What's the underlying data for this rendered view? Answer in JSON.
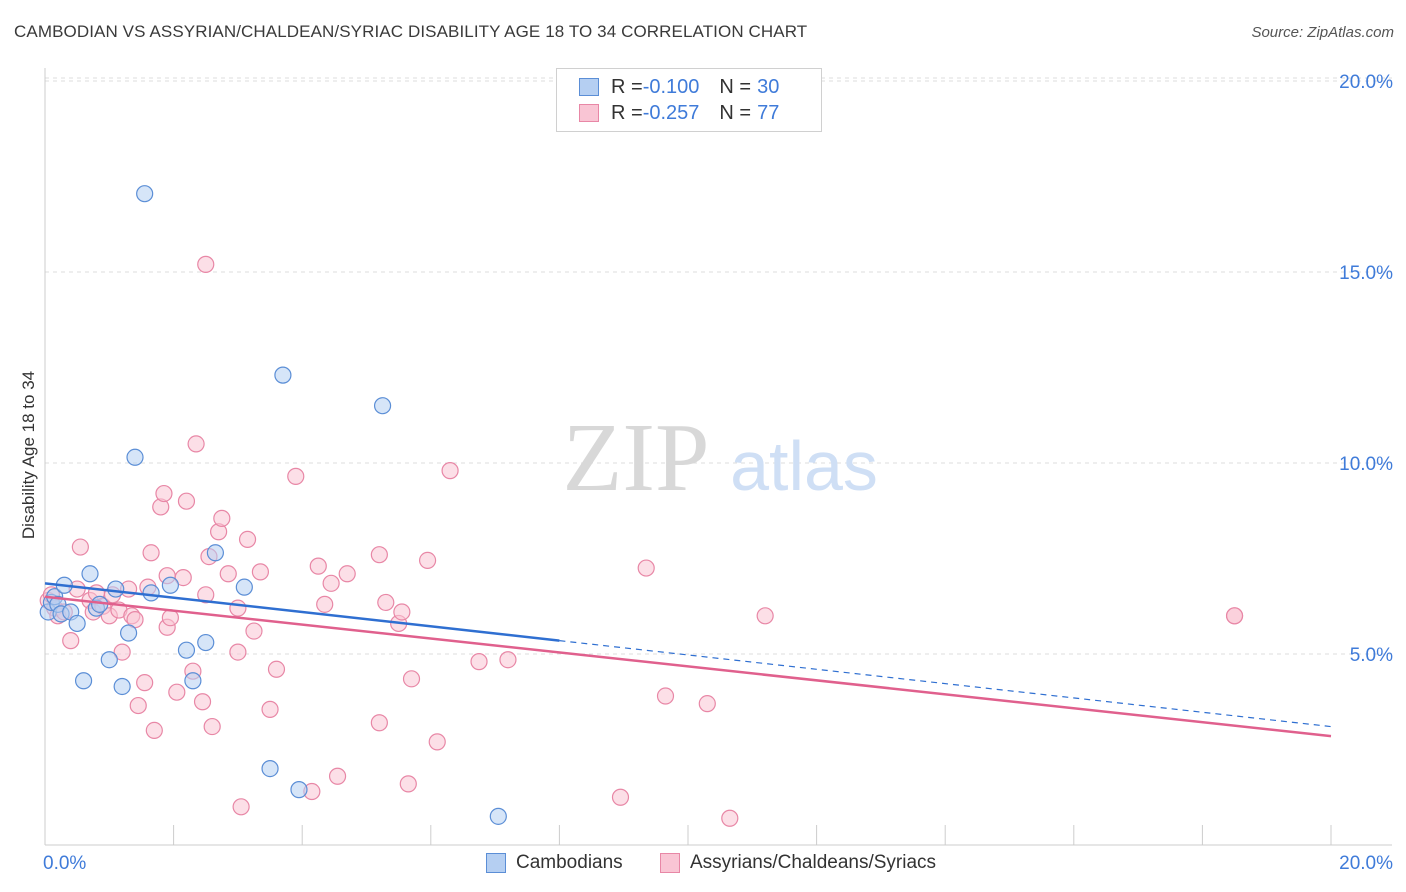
{
  "title": "CAMBODIAN VS ASSYRIAN/CHALDEAN/SYRIAC DISABILITY AGE 18 TO 34 CORRELATION CHART",
  "source": "Source: ZipAtlas.com",
  "watermark": {
    "zip": "ZIP",
    "atlas": "atlas"
  },
  "legend_stats": [
    {
      "r_label": "R = ",
      "r_value": "-0.100",
      "n_label": "N = ",
      "n_value": "30"
    },
    {
      "r_label": "R = ",
      "r_value": "-0.257",
      "n_label": "N = ",
      "n_value": "77"
    }
  ],
  "colors": {
    "blue_fill": "#b5cff2",
    "blue_stroke": "#5b8ed6",
    "blue_line": "#2f6fd1",
    "pink_fill": "#f9c5d4",
    "pink_stroke": "#e887a6",
    "pink_line": "#e0608d",
    "grid": "#dddddd",
    "tick_text": "#3f7bd9"
  },
  "chart_data": {
    "type": "scatter",
    "title": "CAMBODIAN VS ASSYRIAN/CHALDEAN/SYRIAC DISABILITY AGE 18 TO 34 CORRELATION CHART",
    "xlabel": "",
    "ylabel": "Disability Age 18 to 34",
    "xlim": [
      0,
      20
    ],
    "ylim": [
      0,
      20
    ],
    "x_tick_labels": [
      "0.0%",
      "20.0%"
    ],
    "y_ticks": [
      5,
      10,
      15,
      20
    ],
    "y_tick_labels": [
      "5.0%",
      "10.0%",
      "15.0%",
      "20.0%"
    ],
    "grid": true,
    "legend_position": "top-center",
    "series": [
      {
        "name": "Cambodians",
        "color": "blue",
        "r": -0.1,
        "n": 30,
        "trend": {
          "x0": 0,
          "y0": 6.85,
          "x1": 8.0,
          "y1": 5.35,
          "dashed_to_x": 20,
          "dashed_y1": 3.1
        },
        "points": [
          [
            0.05,
            6.1
          ],
          [
            0.1,
            6.35
          ],
          [
            0.15,
            6.5
          ],
          [
            0.2,
            6.3
          ],
          [
            0.25,
            6.05
          ],
          [
            0.3,
            6.8
          ],
          [
            0.4,
            6.1
          ],
          [
            0.5,
            5.8
          ],
          [
            0.6,
            4.3
          ],
          [
            0.7,
            7.1
          ],
          [
            0.8,
            6.2
          ],
          [
            0.85,
            6.3
          ],
          [
            1.0,
            4.85
          ],
          [
            1.1,
            6.7
          ],
          [
            1.2,
            4.15
          ],
          [
            1.3,
            5.55
          ],
          [
            1.4,
            10.15
          ],
          [
            1.55,
            17.05
          ],
          [
            1.65,
            6.6
          ],
          [
            1.95,
            6.8
          ],
          [
            2.2,
            5.1
          ],
          [
            2.3,
            4.3
          ],
          [
            2.5,
            5.3
          ],
          [
            2.65,
            7.65
          ],
          [
            3.1,
            6.75
          ],
          [
            3.5,
            2.0
          ],
          [
            3.7,
            12.3
          ],
          [
            3.95,
            1.45
          ],
          [
            5.25,
            11.5
          ],
          [
            7.05,
            0.75
          ]
        ]
      },
      {
        "name": "Assyrians/Chaldeans/Syriacs",
        "color": "pink",
        "r": -0.257,
        "n": 77,
        "trend": {
          "x0": 0,
          "y0": 6.5,
          "x1": 20,
          "y1": 2.85
        },
        "points": [
          [
            0.05,
            6.4
          ],
          [
            0.1,
            6.55
          ],
          [
            0.15,
            6.2
          ],
          [
            0.2,
            6.0
          ],
          [
            0.3,
            6.1
          ],
          [
            0.4,
            5.35
          ],
          [
            0.5,
            6.7
          ],
          [
            0.55,
            7.8
          ],
          [
            0.7,
            6.4
          ],
          [
            0.75,
            6.1
          ],
          [
            0.8,
            6.6
          ],
          [
            0.9,
            6.25
          ],
          [
            1.0,
            6.0
          ],
          [
            1.05,
            6.55
          ],
          [
            1.15,
            6.15
          ],
          [
            1.2,
            5.05
          ],
          [
            1.3,
            6.7
          ],
          [
            1.35,
            6.0
          ],
          [
            1.4,
            5.9
          ],
          [
            1.45,
            3.65
          ],
          [
            1.55,
            4.25
          ],
          [
            1.6,
            6.75
          ],
          [
            1.65,
            7.65
          ],
          [
            1.7,
            3.0
          ],
          [
            1.8,
            8.85
          ],
          [
            1.85,
            9.2
          ],
          [
            1.9,
            7.05
          ],
          [
            1.9,
            5.7
          ],
          [
            1.95,
            5.95
          ],
          [
            2.05,
            4.0
          ],
          [
            2.15,
            7.0
          ],
          [
            2.2,
            9.0
          ],
          [
            2.3,
            4.55
          ],
          [
            2.35,
            10.5
          ],
          [
            2.45,
            3.75
          ],
          [
            2.5,
            15.2
          ],
          [
            2.5,
            6.55
          ],
          [
            2.55,
            7.55
          ],
          [
            2.6,
            3.1
          ],
          [
            2.7,
            8.2
          ],
          [
            2.75,
            8.55
          ],
          [
            2.85,
            7.1
          ],
          [
            3.0,
            5.05
          ],
          [
            3.0,
            6.2
          ],
          [
            3.05,
            1.0
          ],
          [
            3.15,
            8.0
          ],
          [
            3.25,
            5.6
          ],
          [
            3.35,
            7.15
          ],
          [
            3.5,
            3.55
          ],
          [
            3.6,
            4.6
          ],
          [
            3.9,
            9.65
          ],
          [
            4.15,
            1.4
          ],
          [
            4.25,
            7.3
          ],
          [
            4.35,
            6.3
          ],
          [
            4.45,
            6.85
          ],
          [
            4.55,
            1.8
          ],
          [
            4.7,
            7.1
          ],
          [
            5.2,
            7.6
          ],
          [
            5.2,
            3.2
          ],
          [
            5.3,
            6.35
          ],
          [
            5.5,
            5.8
          ],
          [
            5.55,
            6.1
          ],
          [
            5.65,
            1.6
          ],
          [
            5.7,
            4.35
          ],
          [
            5.95,
            7.45
          ],
          [
            6.1,
            2.7
          ],
          [
            6.3,
            9.8
          ],
          [
            6.75,
            4.8
          ],
          [
            7.2,
            4.85
          ],
          [
            8.95,
            1.25
          ],
          [
            9.35,
            7.25
          ],
          [
            9.65,
            3.9
          ],
          [
            10.3,
            3.7
          ],
          [
            10.65,
            0.7
          ],
          [
            11.2,
            6.0
          ],
          [
            18.5,
            6.0
          ],
          [
            18.5,
            6.0
          ]
        ]
      }
    ]
  }
}
